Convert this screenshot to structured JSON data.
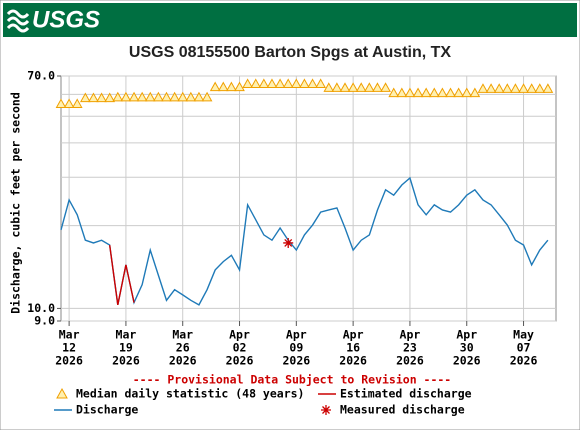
{
  "header": {
    "logo": "USGS"
  },
  "chart_data": {
    "type": "line",
    "title": "USGS 08155500 Barton Spgs at Austin, TX",
    "y_label": "Discharge, cubic feet per second",
    "annotation": "---- Provisional Data Subject to Revision ----",
    "log_y": true,
    "grid": true,
    "xlim": [
      "2026-03-11",
      "2026-05-11"
    ],
    "ylim": [
      9,
      70
    ],
    "yticks": [
      {
        "value": 70,
        "label": "70.0"
      },
      {
        "value": 10,
        "label": "10.0"
      },
      {
        "value": 9,
        "label": "9.0"
      }
    ],
    "minor_yticks": [
      20,
      30,
      40,
      50,
      60
    ],
    "xticks": [
      {
        "value": "2026-03-12",
        "label": [
          "Mar",
          "12",
          "2026"
        ]
      },
      {
        "value": "2026-03-19",
        "label": [
          "Mar",
          "19",
          "2026"
        ]
      },
      {
        "value": "2026-03-26",
        "label": [
          "Mar",
          "26",
          "2026"
        ]
      },
      {
        "value": "2026-04-02",
        "label": [
          "Apr",
          "02",
          "2026"
        ]
      },
      {
        "value": "2026-04-09",
        "label": [
          "Apr",
          "09",
          "2026"
        ]
      },
      {
        "value": "2026-04-16",
        "label": [
          "Apr",
          "16",
          "2026"
        ]
      },
      {
        "value": "2026-04-23",
        "label": [
          "Apr",
          "23",
          "2026"
        ]
      },
      {
        "value": "2026-04-30",
        "label": [
          "Apr",
          "30",
          "2026"
        ]
      },
      {
        "value": "2026-05-07",
        "label": [
          "May",
          "07",
          "2026"
        ]
      }
    ],
    "x": [
      "2026-03-11",
      "2026-03-12",
      "2026-03-13",
      "2026-03-14",
      "2026-03-15",
      "2026-03-16",
      "2026-03-17",
      "2026-03-18",
      "2026-03-19",
      "2026-03-20",
      "2026-03-21",
      "2026-03-22",
      "2026-03-23",
      "2026-03-24",
      "2026-03-25",
      "2026-03-26",
      "2026-03-27",
      "2026-03-28",
      "2026-03-29",
      "2026-03-30",
      "2026-03-31",
      "2026-04-01",
      "2026-04-02",
      "2026-04-03",
      "2026-04-04",
      "2026-04-05",
      "2026-04-06",
      "2026-04-07",
      "2026-04-08",
      "2026-04-09",
      "2026-04-10",
      "2026-04-11",
      "2026-04-12",
      "2026-04-13",
      "2026-04-14",
      "2026-04-15",
      "2026-04-16",
      "2026-04-17",
      "2026-04-18",
      "2026-04-19",
      "2026-04-20",
      "2026-04-21",
      "2026-04-22",
      "2026-04-23",
      "2026-04-24",
      "2026-04-25",
      "2026-04-26",
      "2026-04-27",
      "2026-04-28",
      "2026-04-29",
      "2026-04-30",
      "2026-05-01",
      "2026-05-02",
      "2026-05-03",
      "2026-05-04",
      "2026-05-05",
      "2026-05-06",
      "2026-05-07",
      "2026-05-08",
      "2026-05-09",
      "2026-05-10"
    ],
    "series": [
      {
        "name": "Median daily statistic (48 years)",
        "color": "#f0a000",
        "mark": "triangle",
        "values": [
          55.4,
          55.4,
          55.4,
          58.2,
          58.2,
          58.2,
          58.2,
          58.6,
          58.6,
          58.6,
          58.6,
          58.6,
          58.6,
          58.6,
          58.6,
          58.6,
          58.6,
          58.6,
          58.6,
          63.8,
          63.8,
          63.8,
          63.8,
          65.5,
          65.5,
          65.5,
          65.5,
          65.5,
          65.5,
          65.5,
          65.5,
          65.5,
          65.5,
          63.4,
          63.4,
          63.4,
          63.4,
          63.4,
          63.4,
          63.4,
          63.4,
          60.7,
          60.7,
          60.7,
          60.7,
          60.7,
          60.7,
          60.7,
          60.7,
          60.7,
          60.7,
          60.7,
          62.9,
          62.9,
          62.9,
          62.9,
          62.9,
          62.9,
          62.9,
          62.9,
          62.9
        ]
      },
      {
        "name": "Estimated discharge",
        "color": "#cc0000",
        "mark": "line",
        "values": [
          null,
          null,
          null,
          null,
          null,
          null,
          17.0,
          10.3,
          14.4,
          10.5,
          null,
          null,
          null,
          null,
          null,
          null,
          null,
          null,
          null,
          null,
          null,
          null,
          null,
          null,
          null,
          null,
          null,
          null,
          null,
          null,
          null,
          null,
          null,
          null,
          null,
          null,
          null,
          null,
          null,
          null,
          null,
          null,
          null,
          null,
          null,
          null,
          null,
          null,
          null,
          null,
          null,
          null,
          null,
          null,
          null,
          null,
          null,
          null,
          null,
          null,
          null
        ]
      },
      {
        "name": "Discharge",
        "color": "#1f7ab8",
        "mark": "line",
        "values": [
          19.3,
          24.8,
          21.9,
          17.7,
          17.3,
          17.7,
          17.0,
          10.3,
          14.4,
          10.5,
          12.2,
          16.3,
          13.2,
          10.7,
          11.7,
          11.2,
          10.7,
          10.3,
          11.7,
          13.8,
          14.8,
          15.6,
          13.8,
          23.8,
          21.0,
          18.5,
          17.7,
          19.6,
          17.7,
          16.3,
          18.5,
          20.1,
          22.4,
          22.8,
          23.2,
          19.6,
          16.3,
          17.7,
          18.5,
          22.8,
          27.0,
          25.8,
          28.1,
          29.8,
          23.8,
          21.9,
          23.8,
          22.8,
          22.4,
          23.8,
          25.8,
          27.0,
          24.8,
          23.8,
          21.9,
          20.1,
          17.7,
          17.0,
          14.4,
          16.3,
          17.7
        ]
      },
      {
        "name": "Measured discharge",
        "color": "#cc0000",
        "mark": "asterisk",
        "x": [
          "2026-04-08"
        ],
        "values": [
          17.3
        ]
      }
    ]
  }
}
